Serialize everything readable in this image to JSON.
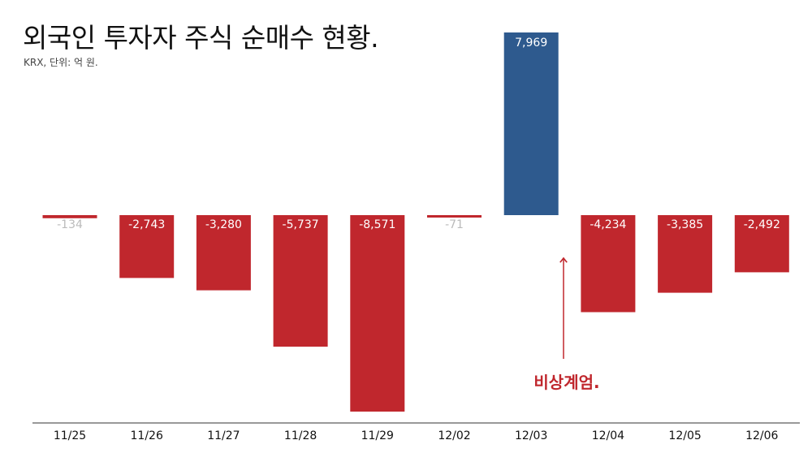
{
  "title": "외국인 투자자 주식 순매수 현황.",
  "subtitle": "KRX, 단위: 억 원.",
  "colors": {
    "negative": "#c0272d",
    "positive": "#2e5a8e",
    "small_label": "#bbbbbb",
    "inner_label": "#ffffff",
    "annotation": "#c0272d",
    "axis": "#333333"
  },
  "annotation": {
    "text": "비상계엄.",
    "category": "12/03"
  },
  "chart_data": {
    "type": "bar",
    "categories": [
      "11/25",
      "11/26",
      "11/27",
      "11/28",
      "11/29",
      "12/02",
      "12/03",
      "12/04",
      "12/05",
      "12/06"
    ],
    "values": [
      -134,
      -2743,
      -3280,
      -5737,
      -8571,
      -71,
      7969,
      -4234,
      -3385,
      -2492
    ],
    "value_labels": [
      "-134",
      "-2,743",
      "-3,280",
      "-5,737",
      "-8,571",
      "-71",
      "7,969",
      "-4,234",
      "-3,385",
      "-2,492"
    ],
    "title": "외국인 투자자 주식 순매수 현황.",
    "subtitle": "KRX, 단위: 억 원.",
    "xlabel": "",
    "ylabel": "",
    "ylim": [
      -8571,
      7969
    ],
    "grid": false,
    "legend": "none"
  }
}
